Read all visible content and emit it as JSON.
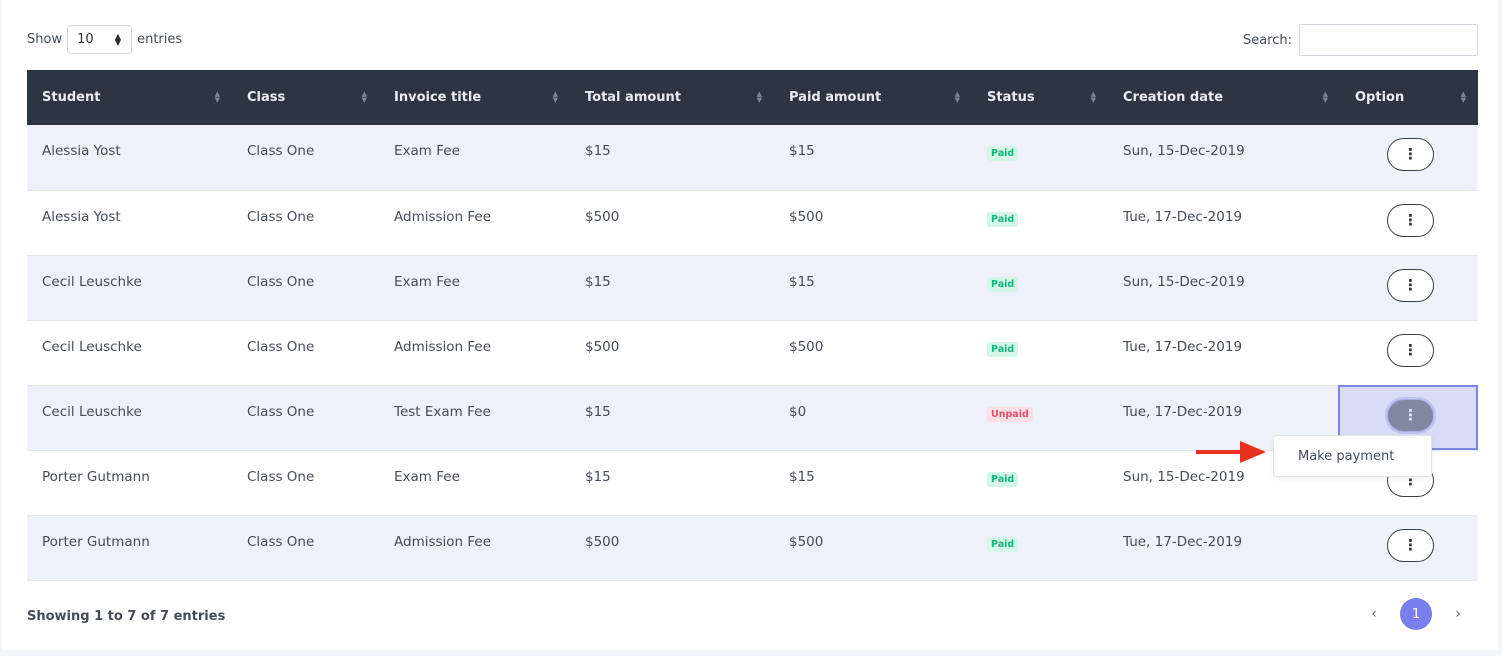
{
  "length_menu": {
    "show_label": "Show",
    "selected": "10",
    "entries_label": "entries"
  },
  "search": {
    "label": "Search:",
    "value": ""
  },
  "columns": [
    "Student",
    "Class",
    "Invoice title",
    "Total amount",
    "Paid amount",
    "Status",
    "Creation date",
    "Option"
  ],
  "rows": [
    {
      "student": "Alessia Yost",
      "class": "Class One",
      "invoice": "Exam Fee",
      "total": "$15",
      "paid": "$15",
      "status": "Paid",
      "date": "Sun, 15-Dec-2019"
    },
    {
      "student": "Alessia Yost",
      "class": "Class One",
      "invoice": "Admission Fee",
      "total": "$500",
      "paid": "$500",
      "status": "Paid",
      "date": "Tue, 17-Dec-2019"
    },
    {
      "student": "Cecil Leuschke",
      "class": "Class One",
      "invoice": "Exam Fee",
      "total": "$15",
      "paid": "$15",
      "status": "Paid",
      "date": "Sun, 15-Dec-2019"
    },
    {
      "student": "Cecil Leuschke",
      "class": "Class One",
      "invoice": "Admission Fee",
      "total": "$500",
      "paid": "$500",
      "status": "Paid",
      "date": "Tue, 17-Dec-2019"
    },
    {
      "student": "Cecil Leuschke",
      "class": "Class One",
      "invoice": "Test Exam Fee",
      "total": "$15",
      "paid": "$0",
      "status": "Unpaid",
      "date": "Tue, 17-Dec-2019"
    },
    {
      "student": "Porter Gutmann",
      "class": "Class One",
      "invoice": "Exam Fee",
      "total": "$15",
      "paid": "$15",
      "status": "Paid",
      "date": "Sun, 15-Dec-2019"
    },
    {
      "student": "Porter Gutmann",
      "class": "Class One",
      "invoice": "Admission Fee",
      "total": "$500",
      "paid": "$500",
      "status": "Paid",
      "date": "Tue, 17-Dec-2019"
    }
  ],
  "option_button_glyph": "⋮",
  "dropdown": {
    "item": "Make payment"
  },
  "footer": {
    "info": "Showing 1 to 7 of 7 entries"
  },
  "pagination": {
    "prev": "‹",
    "current": "1",
    "next": "›"
  },
  "colors": {
    "header_bg": "#2e3542",
    "accent": "#7a7fee",
    "paid": "#15b67a",
    "unpaid": "#e2506d",
    "annotation_arrow": "#e8321e"
  }
}
